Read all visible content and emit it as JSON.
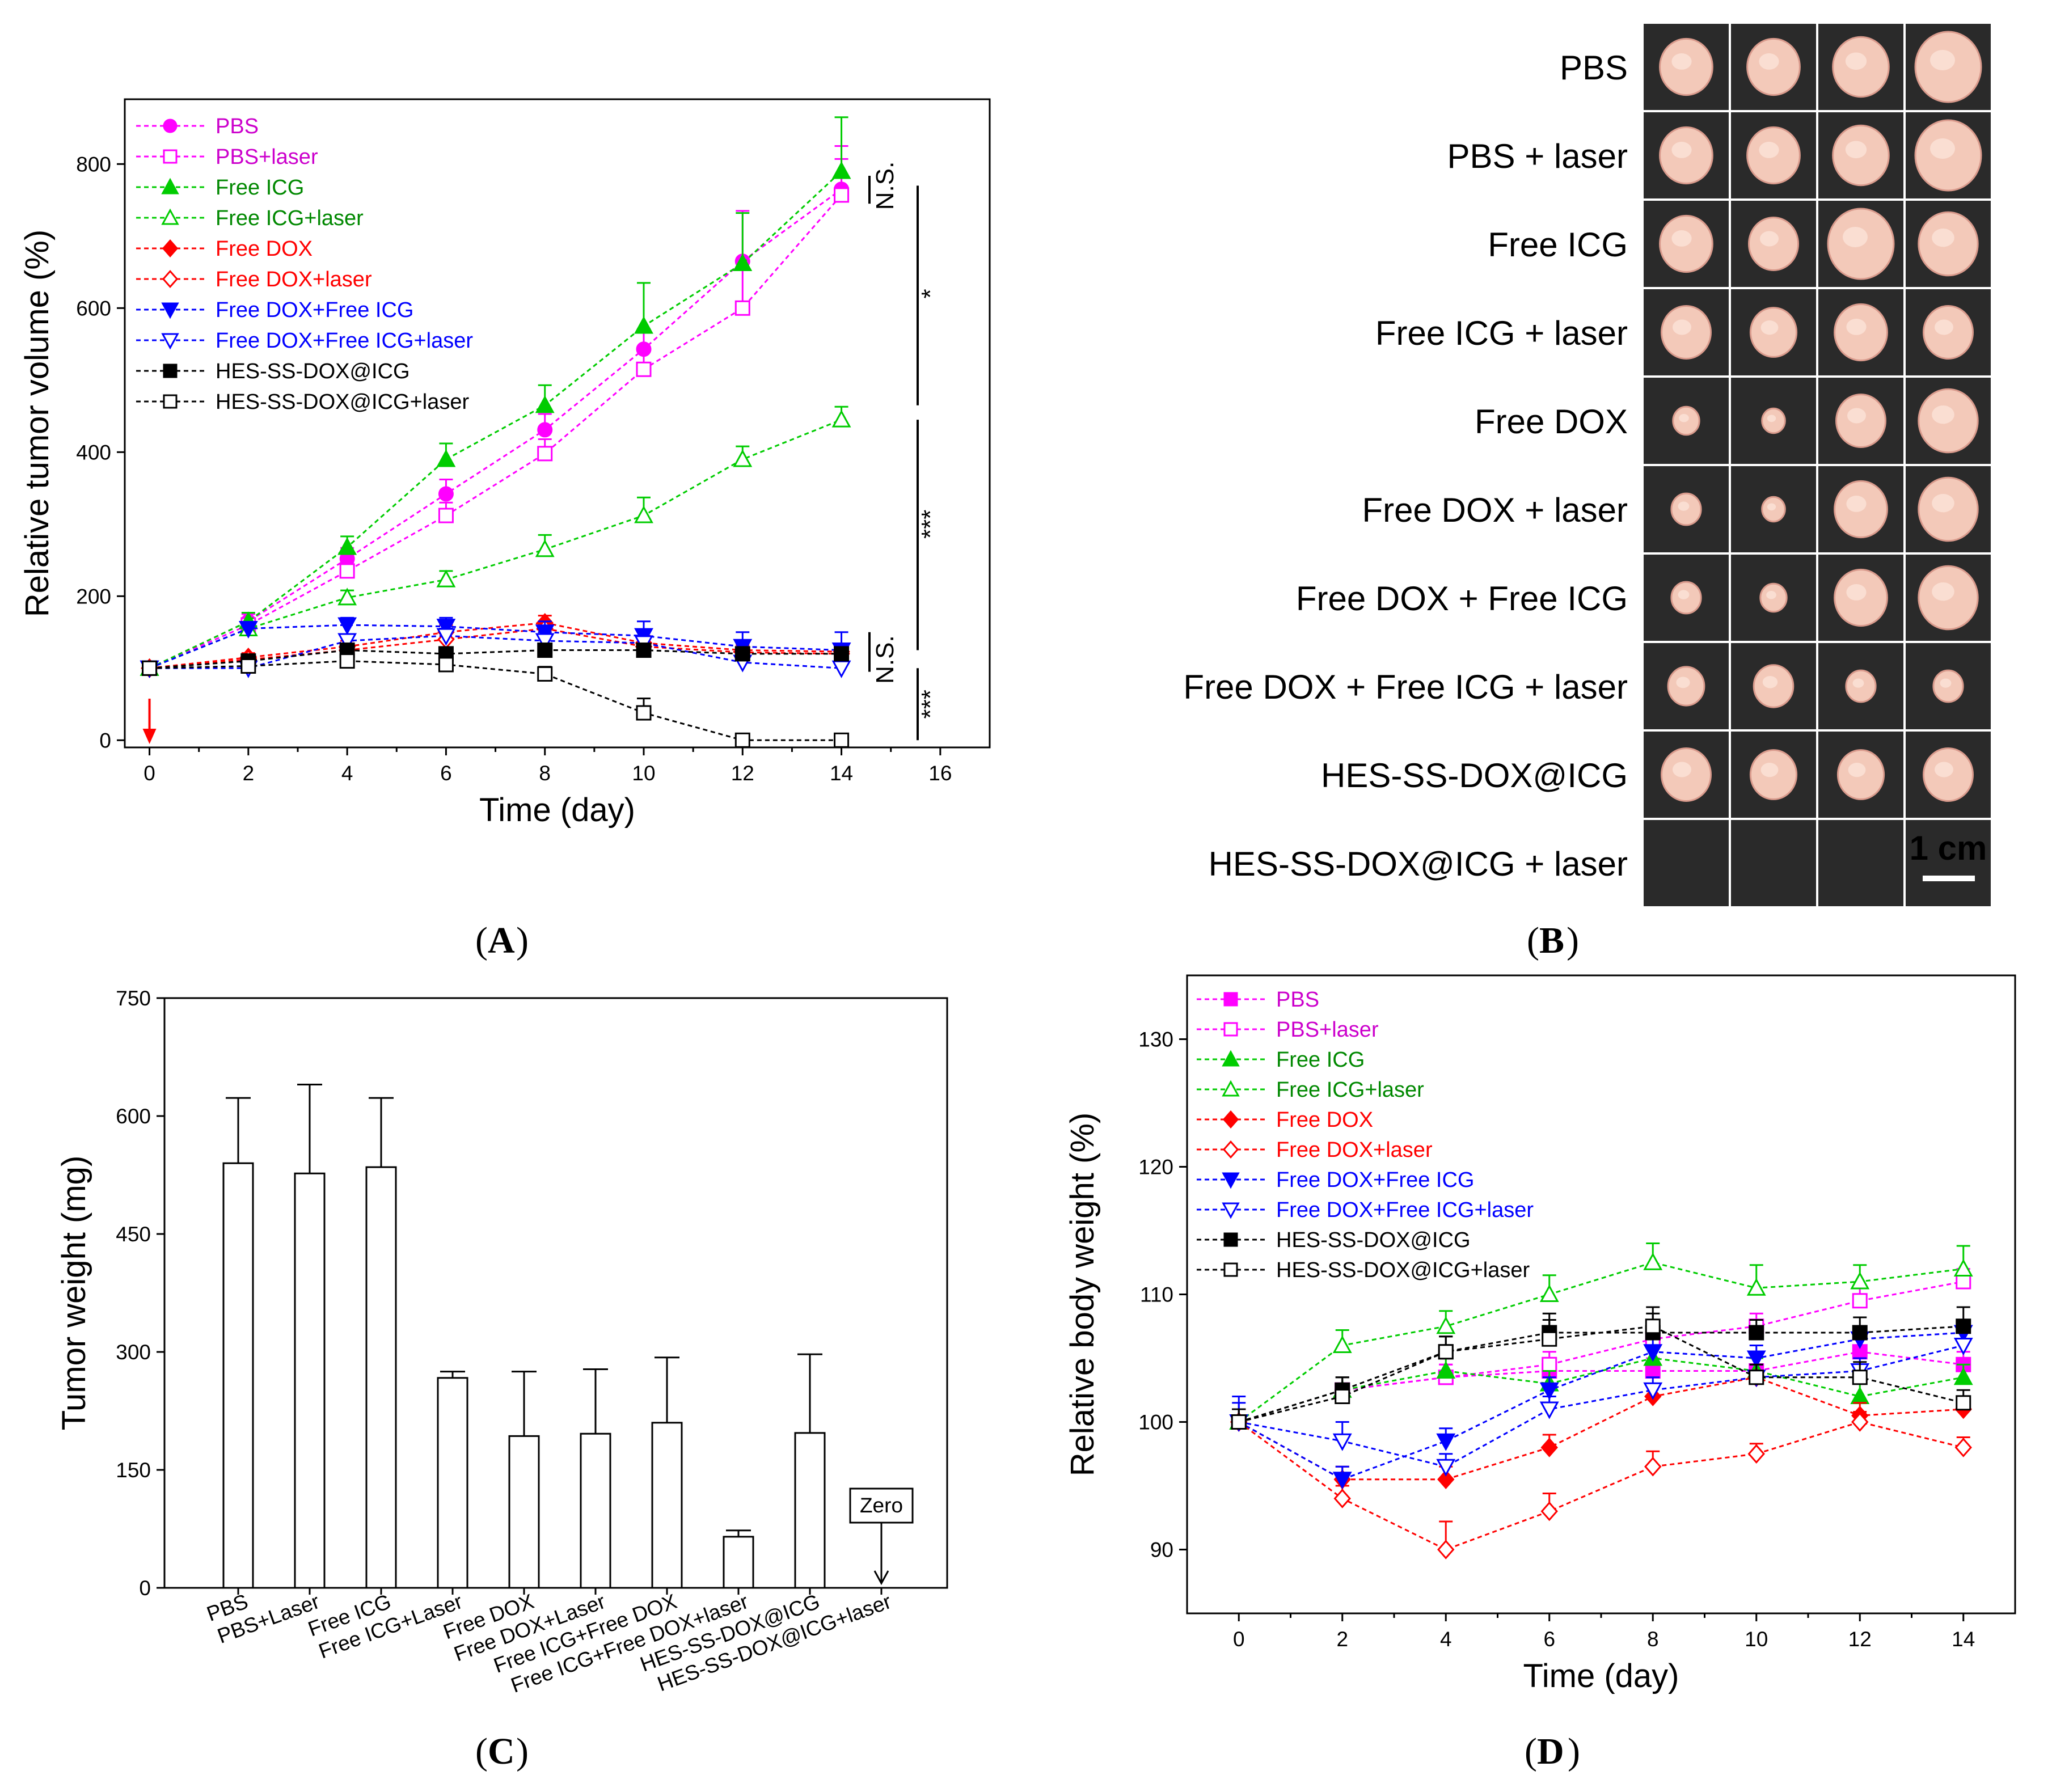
{
  "panel_labels": {
    "A": "A",
    "B": "B",
    "C": "C",
    "D": "D"
  },
  "panel_b": {
    "rows": [
      "PBS",
      "PBS + laser",
      "Free ICG",
      "Free ICG + laser",
      "Free DOX",
      "Free DOX + laser",
      "Free DOX + Free ICG",
      "Free DOX + Free ICG + laser",
      "HES-SS-DOX@ICG",
      "HES-SS-DOX@ICG + laser"
    ],
    "scale_bar": "1 cm",
    "tumor_sizes": [
      [
        0.8,
        0.8,
        0.85,
        1.0
      ],
      [
        0.8,
        0.8,
        0.85,
        1.0
      ],
      [
        0.8,
        0.75,
        1.0,
        0.9
      ],
      [
        0.75,
        0.7,
        0.8,
        0.75
      ],
      [
        0.4,
        0.35,
        0.75,
        0.9
      ],
      [
        0.45,
        0.35,
        0.8,
        0.9
      ],
      [
        0.45,
        0.4,
        0.8,
        0.9
      ],
      [
        0.55,
        0.6,
        0.45,
        0.45
      ],
      [
        0.75,
        0.7,
        0.7,
        0.75
      ],
      [
        0,
        0,
        0,
        0
      ]
    ]
  },
  "chart_data": [
    {
      "type": "line",
      "xlabel": "Time (day)",
      "ylabel": "Relative tumor volume (%)",
      "xlim": [
        -0.5,
        17
      ],
      "ylim": [
        -10,
        890
      ],
      "xticks": [
        0,
        2,
        4,
        6,
        8,
        10,
        12,
        14,
        16
      ],
      "yticks": [
        0,
        200,
        400,
        600,
        800
      ],
      "x": [
        0,
        2,
        4,
        6,
        8,
        10,
        12,
        14
      ],
      "legend_position": "top-left",
      "series": [
        {
          "name": "PBS",
          "color": "#ff00ff",
          "marker": "circle",
          "filled": true,
          "values": [
            100,
            165,
            252,
            342,
            431,
            543,
            665,
            765
          ],
          "errors": [
            5,
            10,
            15,
            20,
            22,
            28,
            70,
            60
          ]
        },
        {
          "name": "PBS+laser",
          "color": "#ff00ff",
          "marker": "square",
          "filled": false,
          "values": [
            100,
            160,
            235,
            312,
            398,
            515,
            600,
            757
          ],
          "errors": [
            5,
            10,
            12,
            18,
            20,
            25,
            65,
            50
          ]
        },
        {
          "name": "Free ICG",
          "color": "#00cc00",
          "marker": "triangle-up",
          "filled": true,
          "values": [
            100,
            165,
            268,
            390,
            465,
            575,
            662,
            790
          ],
          "errors": [
            5,
            12,
            15,
            22,
            28,
            60,
            70,
            75
          ]
        },
        {
          "name": "Free ICG+laser",
          "color": "#00cc00",
          "marker": "triangle-up",
          "filled": false,
          "values": [
            100,
            155,
            198,
            223,
            265,
            312,
            390,
            445
          ],
          "errors": [
            5,
            8,
            10,
            12,
            20,
            25,
            18,
            18
          ]
        },
        {
          "name": "Free DOX",
          "color": "#ff0000",
          "marker": "diamond",
          "filled": true,
          "values": [
            100,
            115,
            130,
            150,
            163,
            135,
            125,
            123
          ],
          "errors": [
            4,
            6,
            8,
            10,
            10,
            10,
            10,
            10
          ]
        },
        {
          "name": "Free DOX+laser",
          "color": "#ff0000",
          "marker": "diamond",
          "filled": false,
          "values": [
            100,
            112,
            125,
            140,
            155,
            130,
            122,
            120
          ],
          "errors": [
            4,
            6,
            8,
            10,
            10,
            10,
            10,
            10
          ]
        },
        {
          "name": "Free DOX+Free ICG",
          "color": "#0000ff",
          "marker": "triangle-down",
          "filled": true,
          "values": [
            100,
            155,
            160,
            158,
            150,
            145,
            130,
            125
          ],
          "errors": [
            4,
            8,
            10,
            12,
            15,
            20,
            20,
            25
          ]
        },
        {
          "name": "Free DOX+Free ICG+laser",
          "color": "#0000ff",
          "marker": "triangle-down",
          "filled": false,
          "values": [
            100,
            100,
            138,
            145,
            138,
            135,
            108,
            100
          ],
          "errors": [
            4,
            6,
            8,
            10,
            12,
            15,
            15,
            15
          ]
        },
        {
          "name": "HES-SS-DOX@ICG",
          "color": "#000000",
          "marker": "square",
          "filled": true,
          "values": [
            100,
            110,
            125,
            120,
            125,
            125,
            120,
            120
          ],
          "errors": [
            4,
            6,
            8,
            8,
            8,
            8,
            8,
            8
          ]
        },
        {
          "name": "HES-SS-DOX@ICG+laser",
          "color": "#000000",
          "marker": "square",
          "filled": false,
          "values": [
            100,
            103,
            110,
            105,
            92,
            38,
            0,
            0
          ],
          "errors": [
            4,
            6,
            6,
            8,
            10,
            20,
            2,
            2
          ]
        }
      ],
      "annotations": [
        {
          "text": "N.S.",
          "between": [
            757,
            790
          ]
        },
        {
          "text": "*",
          "between": [
            445,
            757
          ]
        },
        {
          "text": "***",
          "between": [
            125,
            445
          ]
        },
        {
          "text": "N.S.",
          "between": [
            100,
            125
          ]
        },
        {
          "text": "***",
          "between": [
            0,
            100
          ]
        }
      ]
    },
    {
      "type": "bar",
      "ylabel": "Tumor weight (mg)",
      "ylim": [
        0,
        750
      ],
      "yticks": [
        0,
        150,
        300,
        450,
        600,
        750
      ],
      "categories": [
        "PBS",
        "PBS+Laser",
        "Free ICG",
        "Free ICG+Laser",
        "Free DOX",
        "Free DOX+Laser",
        "Free ICG+Free DOX",
        "Free ICG+Free DOX+laser",
        "HES-SS-DOX@ICG",
        "HES-SS-DOX@ICG+laser"
      ],
      "values": [
        540,
        527,
        535,
        267,
        193,
        196,
        210,
        65,
        197,
        0
      ],
      "errors": [
        83,
        113,
        88,
        8,
        82,
        82,
        83,
        8,
        100,
        0
      ],
      "annotations": [
        {
          "text": "Zero",
          "category": "HES-SS-DOX@ICG+laser"
        }
      ]
    },
    {
      "type": "line",
      "xlabel": "Time (day)",
      "ylabel": "Relative body weight (%)",
      "xlim": [
        -1,
        15
      ],
      "ylim": [
        85,
        135
      ],
      "xticks": [
        0,
        2,
        4,
        6,
        8,
        10,
        12,
        14
      ],
      "yticks": [
        90,
        100,
        110,
        120,
        130
      ],
      "x": [
        0,
        2,
        4,
        6,
        8,
        10,
        12,
        14
      ],
      "legend_position": "top-left",
      "series": [
        {
          "name": "PBS",
          "color": "#ff00ff",
          "marker": "square",
          "filled": true,
          "values": [
            100,
            102.5,
            103.5,
            104,
            104,
            104,
            105.5,
            104.5
          ],
          "errors": [
            1,
            1,
            1,
            1,
            1,
            1,
            1,
            1
          ]
        },
        {
          "name": "PBS+laser",
          "color": "#ff00ff",
          "marker": "square",
          "filled": false,
          "values": [
            100,
            102.5,
            103.5,
            104.5,
            106.5,
            107.5,
            109.5,
            111
          ],
          "errors": [
            1,
            1,
            1,
            1,
            1,
            1,
            1,
            1
          ]
        },
        {
          "name": "Free ICG",
          "color": "#00cc00",
          "marker": "triangle-up",
          "filled": true,
          "values": [
            100,
            102.5,
            104,
            103,
            105,
            104,
            102,
            103.5
          ],
          "errors": [
            1,
            1,
            1,
            1,
            1,
            1,
            1,
            1
          ]
        },
        {
          "name": "Free ICG+laser",
          "color": "#00cc00",
          "marker": "triangle-up",
          "filled": false,
          "values": [
            100,
            106,
            107.5,
            110,
            112.5,
            110.5,
            111,
            112
          ],
          "errors": [
            1,
            1.2,
            1.2,
            1.5,
            1.5,
            1.8,
            1.3,
            1.8
          ]
        },
        {
          "name": "Free DOX",
          "color": "#ff0000",
          "marker": "diamond",
          "filled": true,
          "values": [
            100,
            95.5,
            95.5,
            98,
            102,
            103.5,
            100.5,
            101
          ],
          "errors": [
            1,
            1,
            1,
            1,
            1,
            1,
            1,
            1
          ]
        },
        {
          "name": "Free DOX+laser",
          "color": "#ff0000",
          "marker": "diamond",
          "filled": false,
          "values": [
            100,
            94,
            90,
            93,
            96.5,
            97.5,
            100,
            98
          ],
          "errors": [
            1,
            1,
            2.2,
            1.4,
            1.2,
            0.8,
            0.8,
            0.8
          ]
        },
        {
          "name": "Free DOX+Free ICG",
          "color": "#0000ff",
          "marker": "triangle-down",
          "filled": true,
          "values": [
            100,
            95.5,
            98.5,
            102.5,
            105.5,
            105,
            106.5,
            107
          ],
          "errors": [
            2,
            1,
            1,
            1,
            1,
            1,
            1,
            1
          ]
        },
        {
          "name": "Free DOX+Free ICG+laser",
          "color": "#0000ff",
          "marker": "triangle-down",
          "filled": false,
          "values": [
            100,
            98.5,
            96.5,
            101,
            102.5,
            103.5,
            104,
            106
          ],
          "errors": [
            1.5,
            1.5,
            1,
            1,
            1,
            1,
            1,
            1
          ]
        },
        {
          "name": "HES-SS-DOX@ICG",
          "color": "#000000",
          "marker": "square",
          "filled": true,
          "values": [
            100,
            102.5,
            105.5,
            107,
            107,
            107,
            107,
            107.5
          ],
          "errors": [
            1,
            1,
            1.2,
            1.5,
            1.5,
            1,
            1.2,
            1.5
          ]
        },
        {
          "name": "HES-SS-DOX@ICG+laser",
          "color": "#000000",
          "marker": "square",
          "filled": false,
          "values": [
            100,
            102,
            105.5,
            106.5,
            107.5,
            103.5,
            103.5,
            101.5
          ],
          "errors": [
            1,
            1,
            1.2,
            1.5,
            1.5,
            1,
            1.2,
            1
          ]
        }
      ]
    }
  ]
}
